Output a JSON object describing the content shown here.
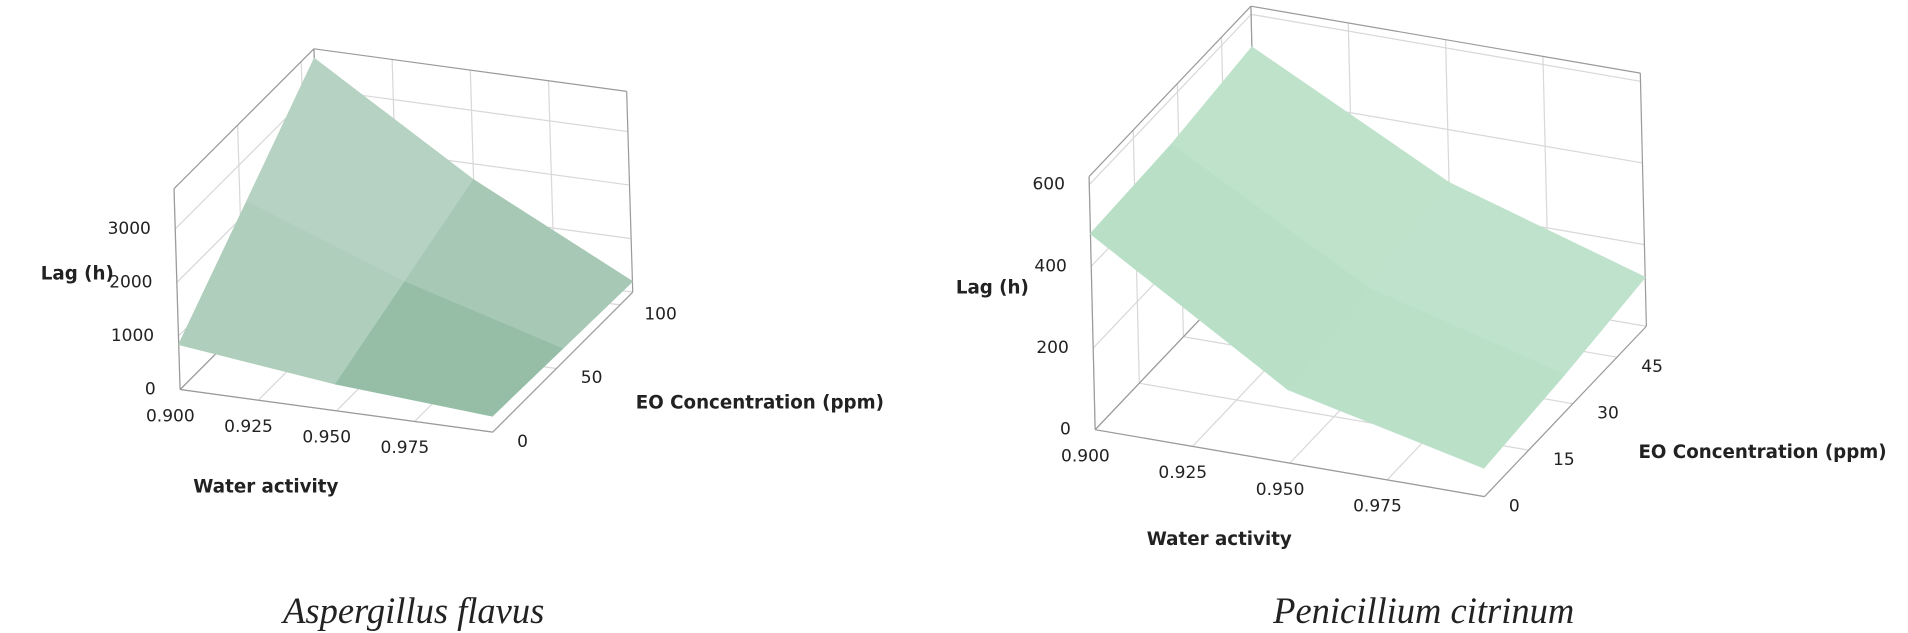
{
  "chart_data": [
    {
      "type": "surface",
      "title": "Aspergillus flavus",
      "xlabel": "Water activity",
      "ylabel": "EO Concentration (ppm)",
      "zlabel": "Lag (h)",
      "x": [
        0.9,
        0.95,
        1.0
      ],
      "y": [
        0,
        55,
        110
      ],
      "z": [
        [
          840,
          500,
          300
        ],
        [
          2200,
          1100,
          250
        ],
        [
          3570,
          1700,
          200
        ]
      ],
      "xlim": [
        0.9,
        1.0
      ],
      "ylim": [
        0,
        110
      ],
      "zlim": [
        0,
        3750
      ],
      "xticks": [
        {
          "value": 0.9,
          "label": "0.900"
        },
        {
          "value": 0.925,
          "label": "0.925"
        },
        {
          "value": 0.95,
          "label": "0.950"
        },
        {
          "value": 0.975,
          "label": "0.975"
        }
      ],
      "yticks": [
        0,
        50,
        100
      ],
      "zticks": [
        0,
        1000,
        2000,
        3000
      ],
      "color": "#0e6a35",
      "grid": true
    },
    {
      "type": "surface",
      "title": "Penicillium citrinum",
      "xlabel": "Water activity",
      "ylabel": "EO Concentration (ppm)",
      "zlabel": "Lag (h)",
      "x": [
        0.9,
        0.95,
        1.0
      ],
      "y": [
        0,
        27.5,
        55
      ],
      "z": [
        [
          480,
          180,
          70
        ],
        [
          490,
          220,
          90
        ],
        [
          520,
          270,
          120
        ]
      ],
      "xlim": [
        0.9,
        1.0
      ],
      "ylim": [
        0,
        55
      ],
      "zlim": [
        0,
        620
      ],
      "xticks": [
        {
          "value": 0.9,
          "label": "0.900"
        },
        {
          "value": 0.925,
          "label": "0.925"
        },
        {
          "value": 0.95,
          "label": "0.950"
        },
        {
          "value": 0.975,
          "label": "0.975"
        }
      ],
      "yticks": [
        0,
        15,
        30,
        45
      ],
      "zticks": [
        0,
        200,
        400,
        600
      ],
      "color": "#5cb57c",
      "grid": true
    }
  ]
}
